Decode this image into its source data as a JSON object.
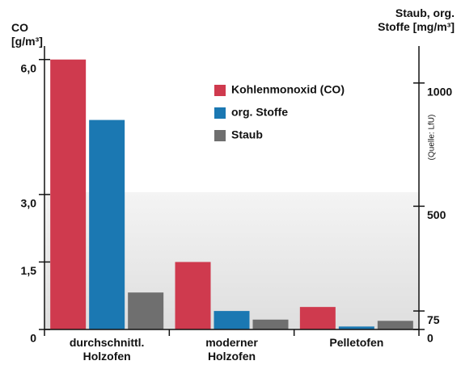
{
  "chart_data": {
    "type": "bar",
    "y_label": "CO [g/m³]",
    "y2_label": "Staub, org. Stoffe [mg/m³]",
    "source": "(Quelle: LfU)",
    "categories": [
      "durchschnittl. Holzofen",
      "moderner Holzofen",
      "Pelletofen"
    ],
    "series": [
      {
        "name": "Kohlenmonoxid (CO)",
        "color": "#cf3a4e",
        "values": [
          6.0,
          1.5,
          0.5
        ]
      },
      {
        "name": "org. Stoffe",
        "color": "#1b78b2",
        "axis": "y2",
        "values": [
          850,
          75,
          12
        ]
      },
      {
        "name": "Staub",
        "color": "#6f6f6f",
        "axis": "y2",
        "values": [
          150,
          40,
          35
        ]
      }
    ],
    "ylim": [
      0,
      6.3
    ],
    "yticks": [
      0,
      {
        "value": 1.5,
        "label": "1,5"
      },
      {
        "value": 3,
        "label": "3,0"
      },
      {
        "value": 6,
        "label": "6,0"
      }
    ],
    "y2lim": [
      0,
      1150
    ],
    "y2ticks": [
      0,
      75,
      500,
      1000
    ],
    "legend": "top-right"
  }
}
